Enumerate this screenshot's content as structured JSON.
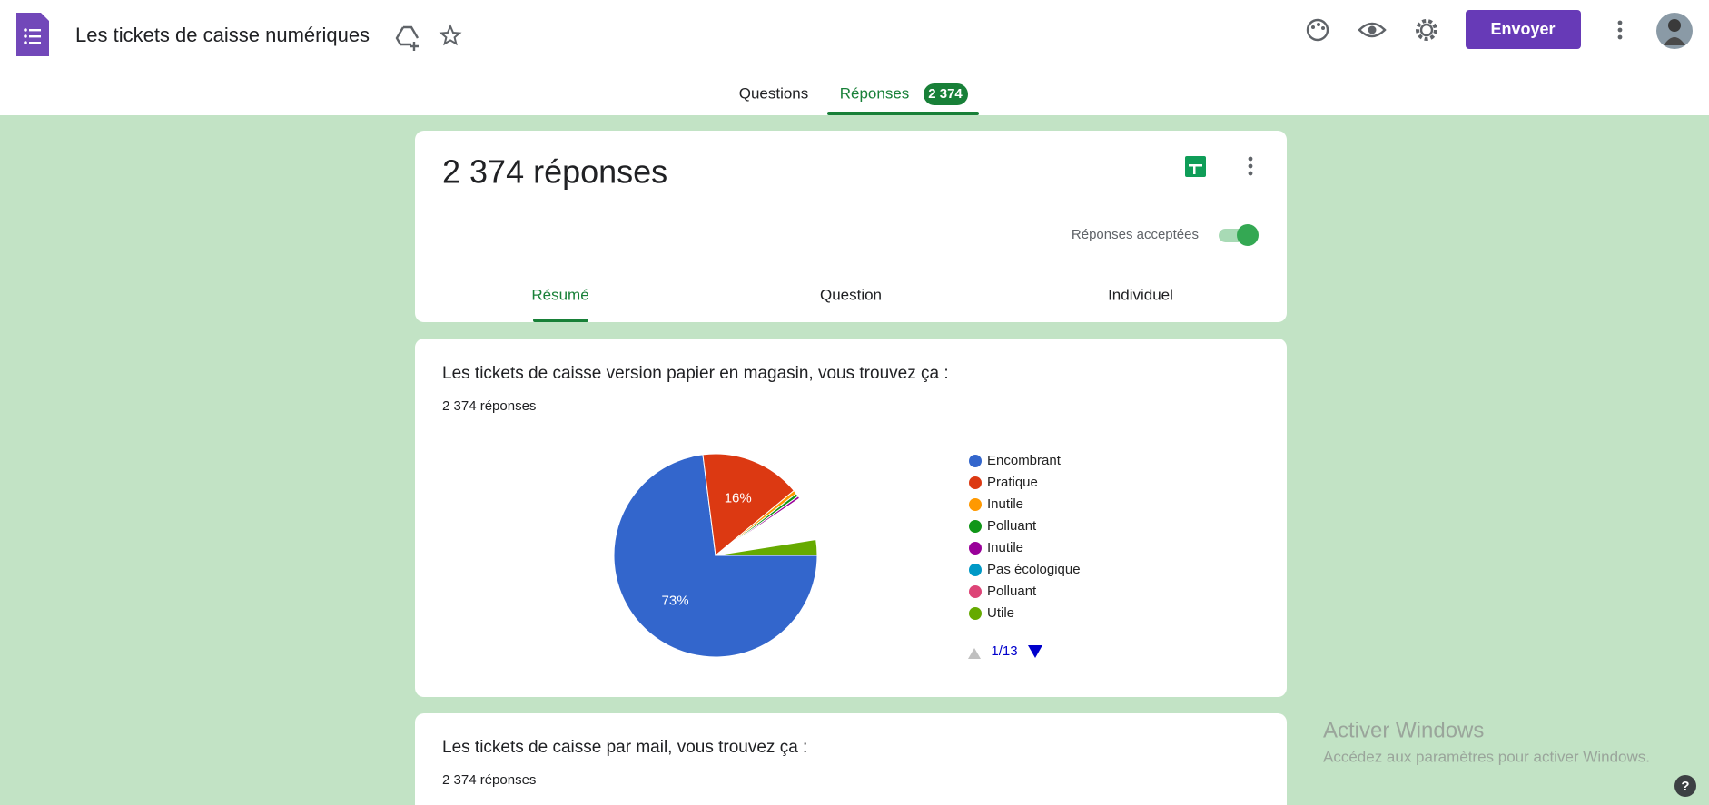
{
  "header": {
    "title": "Les tickets de caisse numériques",
    "send_button": "Envoyer"
  },
  "tabs": {
    "questions": "Questions",
    "responses": "Réponses",
    "badge": "2 374"
  },
  "summary": {
    "title": "2 374 réponses",
    "accepting": "Réponses acceptées",
    "subtabs": [
      "Résumé",
      "Question",
      "Individuel"
    ]
  },
  "questions": [
    {
      "title": "Les tickets de caisse version papier en magasin, vous trouvez ça :",
      "count": "2 374 réponses"
    },
    {
      "title": "Les tickets de caisse par mail, vous trouvez ça :",
      "count": "2 374 réponses"
    }
  ],
  "chart_data": {
    "type": "pie",
    "categories": [
      "Encombrant",
      "Pratique",
      "Inutile",
      "Polluant",
      "Inutile",
      "Pas écologique",
      "Polluant",
      "Utile"
    ],
    "values": [
      73,
      16,
      0.6,
      0.5,
      0.4,
      0.1,
      0.1,
      2.5
    ],
    "value_labels": [
      "73%",
      "16%",
      null,
      null,
      null,
      null,
      null,
      null
    ],
    "colors": [
      "#3366cc",
      "#dc3912",
      "#ff9900",
      "#109618",
      "#990099",
      "#0099c6",
      "#dd4477",
      "#66aa00"
    ],
    "legend_page": "1/13"
  },
  "watermark": {
    "title": "Activer Windows",
    "subtitle": "Accédez aux paramètres pour activer Windows."
  }
}
